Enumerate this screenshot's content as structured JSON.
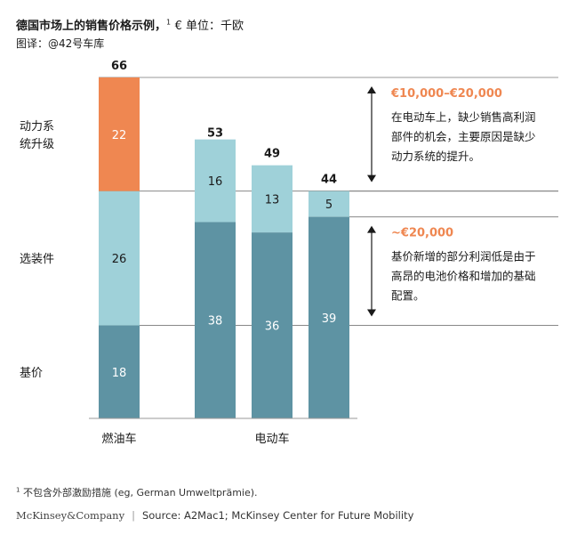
{
  "header": {
    "title": "德国市场上的销售价格示例，",
    "title_sup": "1",
    "unit": "€ 单位：千欧",
    "subtitle": "图译：@42号车库"
  },
  "chart_data": {
    "type": "bar",
    "stacked": true,
    "categories": [
      "燃油车",
      "电动车 1",
      "电动车 2",
      "电动车 3"
    ],
    "category_labels": [
      {
        "text": "燃油车",
        "spans": [
          0
        ]
      },
      {
        "text": "电动车",
        "spans": [
          1,
          2,
          3
        ]
      }
    ],
    "series": [
      {
        "name": "基价",
        "values": [
          18,
          38,
          36,
          39
        ],
        "color": "#5e93a3",
        "label_color": "#ffffff"
      },
      {
        "name": "选装件",
        "values": [
          26,
          16,
          13,
          5
        ],
        "color": "#9fd1d9",
        "label_color": "#1a1a1a"
      },
      {
        "name": "动力系统升级",
        "values": [
          22,
          0,
          0,
          0
        ],
        "color": "#ef8751",
        "label_color": "#ffffff"
      }
    ],
    "totals": [
      66,
      53,
      49,
      44
    ],
    "row_labels": [
      {
        "text": "动力系统升级",
        "lines": [
          "动力系",
          "统升级"
        ]
      },
      {
        "text": "选装件",
        "lines": [
          "选装件"
        ]
      },
      {
        "text": "基价",
        "lines": [
          "基价"
        ]
      }
    ],
    "annotations": [
      {
        "title": "€10,000–€20,000",
        "text": "在电动车上，缺少销售高利润部件的机会，主要原因是缺少动力系统的提升。",
        "lines": [
          "在电动车上，缺少销售高利润",
          "部件的机会，主要原因是缺少",
          "动力系统的提升。"
        ],
        "from": 66,
        "to": 44
      },
      {
        "title": "~€20,000",
        "text": "基价新增的部分利润低是由于高昂的电池价格和增加的基础配置。",
        "lines": [
          "基价新增的部分利润低是由于",
          "高昂的电池价格和增加的基础",
          "配置。"
        ],
        "from": 39,
        "to": 18
      }
    ],
    "ylim": [
      0,
      66
    ],
    "accent_color": "#ef8751"
  },
  "footer": {
    "footnote_sup": "1",
    "footnote": "不包含外部激励措施 (eg, German Umweltprämie).",
    "brand": "McKinsey&Company",
    "separator": "|",
    "source": "Source: A2Mac1; McKinsey Center for Future Mobility"
  }
}
